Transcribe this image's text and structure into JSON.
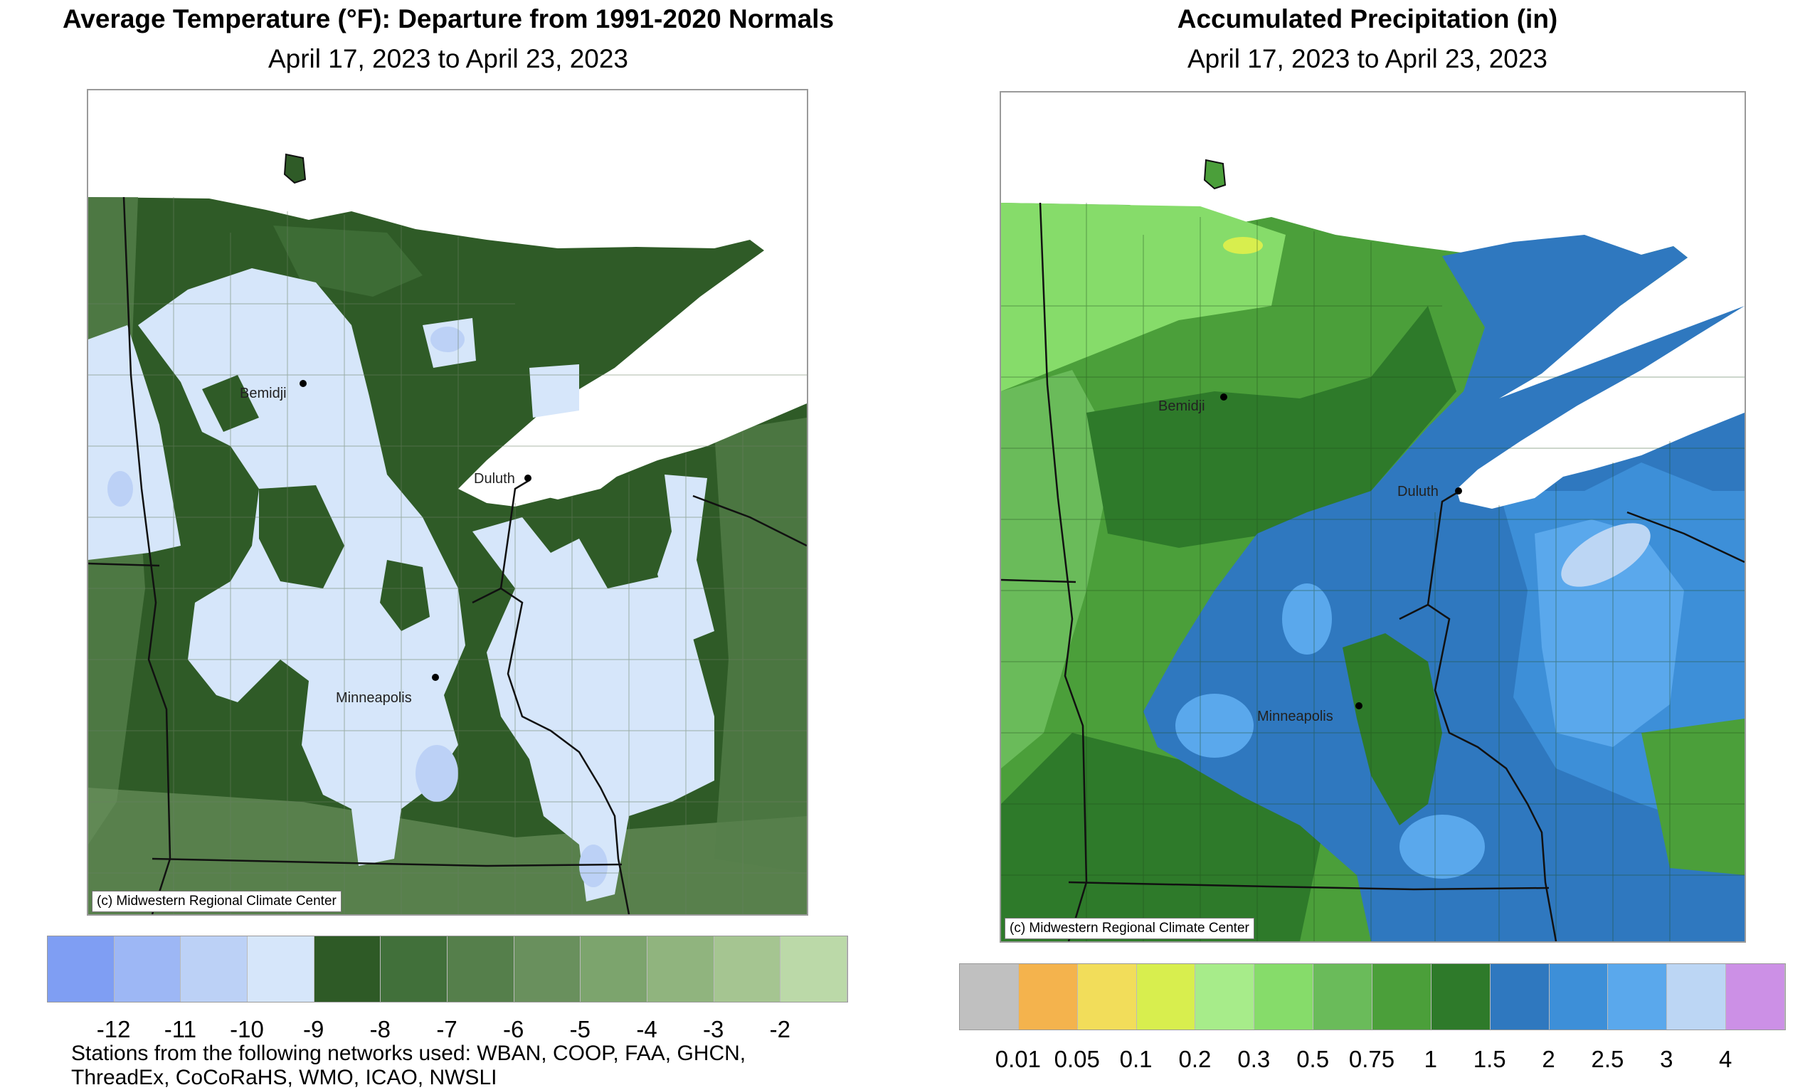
{
  "temperature_map": {
    "title": "Average Temperature (°F): Departure from 1991-2020 Normals",
    "date_range": "April 17, 2023 to April 23, 2023",
    "credit": "(c) Midwestern Regional Climate Center",
    "cities": [
      "Bemidji",
      "Duluth",
      "Minneapolis"
    ],
    "legend": {
      "colors": [
        "#7f9ef3",
        "#9db7f5",
        "#bcd1f6",
        "#d6e6fa",
        "#2e5a26",
        "#41703a",
        "#557f4b",
        "#69905d",
        "#7ca46d",
        "#90b47e",
        "#a5c591",
        "#bbd9a8"
      ],
      "tick_labels": [
        "-12",
        "-11",
        "-10",
        "-9",
        "-8",
        "-7",
        "-6",
        "-5",
        "-4",
        "-3",
        "-2"
      ]
    },
    "footnote_lines": [
      "Stations from the following networks used: WBAN, COOP, FAA, GHCN,",
      "ThreadEx, CoCoRaHS, WMO, ICAO, NWSLI"
    ]
  },
  "precipitation_map": {
    "title": "Accumulated Precipitation (in)",
    "date_range": "April 17, 2023 to April 23, 2023",
    "credit": "(c) Midwestern Regional Climate Center",
    "cities": [
      "Bemidji",
      "Duluth",
      "Minneapolis"
    ],
    "legend": {
      "colors": [
        "#c0c0c0",
        "#f4b34d",
        "#f2dd5a",
        "#d8ee4e",
        "#a7ec8a",
        "#86dc6a",
        "#6abb5a",
        "#4b9f3a",
        "#2e7a2a",
        "#2f78bf",
        "#3d8fd8",
        "#5aa8ec",
        "#bcd6f4",
        "#cc90e6"
      ],
      "tick_labels": [
        "0.01",
        "0.05",
        "0.1",
        "0.2",
        "0.3",
        "0.5",
        "0.75",
        "1",
        "1.5",
        "2",
        "2.5",
        "3",
        "4"
      ]
    }
  }
}
